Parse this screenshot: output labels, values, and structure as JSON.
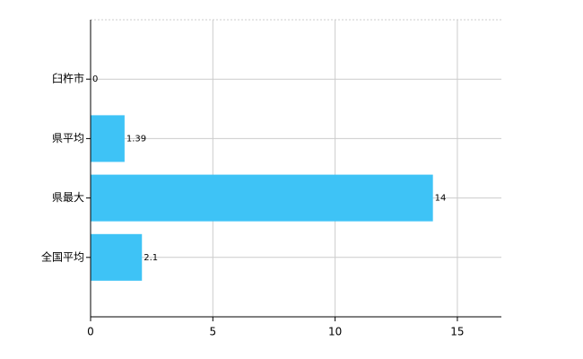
{
  "chart_data": {
    "type": "bar",
    "orientation": "horizontal",
    "categories": [
      "臼杵市",
      "県平均",
      "県最大",
      "全国平均"
    ],
    "values": [
      0,
      1.39,
      14,
      2.1
    ],
    "color": "#3ec3f6",
    "xlim": [
      0,
      16.8
    ],
    "xticks": [
      0,
      5,
      10,
      15
    ],
    "grid": true
  }
}
